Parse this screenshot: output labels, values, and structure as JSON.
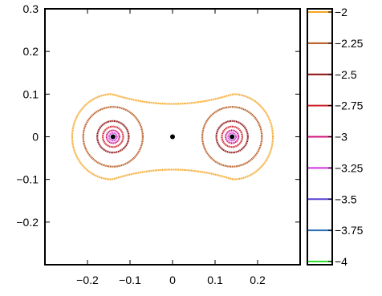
{
  "chart_data": {
    "type": "contour",
    "title": "",
    "xlabel": "",
    "ylabel": "",
    "xlim": [
      -0.3,
      0.3
    ],
    "ylim": [
      -0.3,
      0.3
    ],
    "x_ticks": [
      -0.2,
      -0.1,
      0,
      0.1,
      0.2
    ],
    "x_tick_labels": [
      "−0.2",
      "−0.1",
      "0",
      "0.1",
      "0.2"
    ],
    "y_ticks": [
      0.3,
      0.2,
      0.1,
      0,
      -0.1,
      -0.2
    ],
    "y_tick_labels": [
      "0.3",
      "0.2",
      "0.1",
      "0",
      "−0.1",
      "−0.2"
    ],
    "grid": false,
    "legend": "colorbar-right",
    "centers": [
      [
        -0.14,
        0
      ],
      [
        0.14,
        0
      ]
    ],
    "marker_points": [
      [
        -0.14,
        0
      ],
      [
        0,
        0
      ],
      [
        0.14,
        0
      ]
    ],
    "levels": [
      {
        "value": -2,
        "label": "−2",
        "color": "#f5a623"
      },
      {
        "value": -2.25,
        "label": "−2.25",
        "color": "#b5561b"
      },
      {
        "value": -2.5,
        "label": "−2.5",
        "color": "#8a0f0f"
      },
      {
        "value": -2.75,
        "label": "−2.75",
        "color": "#d0202a"
      },
      {
        "value": -3,
        "label": "−3",
        "color": "#d0107a"
      },
      {
        "value": -3.25,
        "label": "−3.25",
        "color": "#cc33dd"
      },
      {
        "value": -3.5,
        "label": "−3.5",
        "color": "#5a3fd6"
      },
      {
        "value": -3.75,
        "label": "−3.75",
        "color": "#2a6fb0"
      },
      {
        "value": -4,
        "label": "−4",
        "color": "#33dd33"
      }
    ],
    "contours": [
      {
        "level": -2,
        "kind": "peanut",
        "half_width": 0.236,
        "lobe_half_height": 0.1,
        "waist_half_height": 0.077
      },
      {
        "level": -2.25,
        "kind": "pair",
        "radius": 0.07
      },
      {
        "level": -2.5,
        "kind": "pair",
        "radius": 0.037
      },
      {
        "level": -2.75,
        "kind": "pair",
        "radius": 0.024
      },
      {
        "level": -3,
        "kind": "pair",
        "radius": 0.015
      },
      {
        "level": -3.25,
        "kind": "pair",
        "radius": 0.009
      }
    ]
  }
}
